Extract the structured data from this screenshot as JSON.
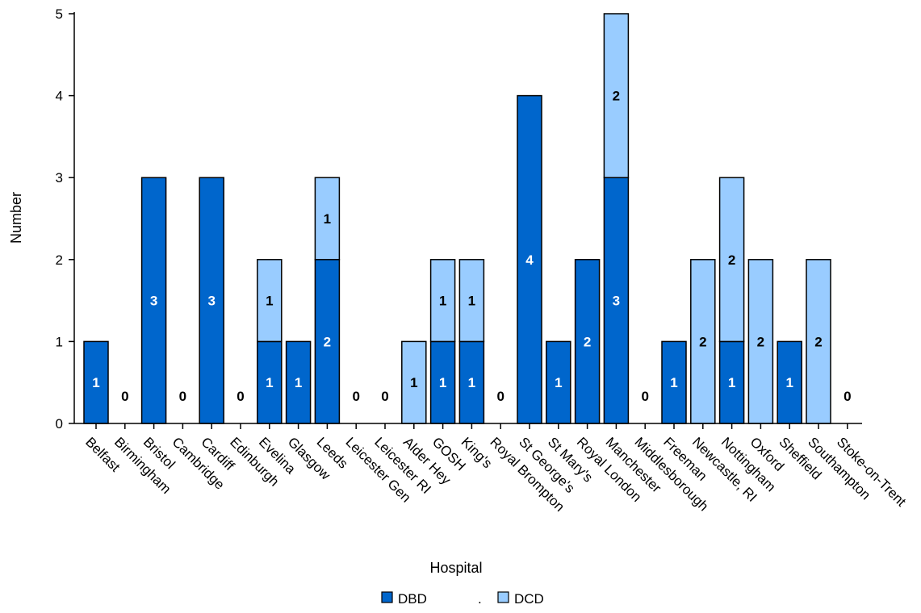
{
  "chart_data": {
    "type": "bar",
    "stacked": true,
    "xlabel": "Hospital",
    "ylabel": "Number",
    "ylim": [
      0,
      5
    ],
    "yticks": [
      0,
      1,
      2,
      3,
      4,
      5
    ],
    "categories": [
      "Belfast",
      "Birmingham",
      "Bristol",
      "Cambridge",
      "Cardiff",
      "Edinburgh",
      "Evelina",
      "Glasgow",
      "Leeds",
      "Leicester Gen",
      "Leicester RI",
      "Alder Hey",
      "GOSH",
      "King's",
      "Royal Brompton",
      "St George's",
      "St Mary's",
      "Royal London",
      "Manchester",
      "Middlesborough",
      "Freeman",
      "Newcastle, RI",
      "Nottingham",
      "Oxford",
      "Sheffield",
      "Southampton",
      "Stoke-on-Trent"
    ],
    "series": [
      {
        "name": "DBD",
        "color": "#0066cc",
        "values": [
          1,
          0,
          3,
          0,
          3,
          0,
          1,
          1,
          2,
          0,
          0,
          0,
          1,
          1,
          0,
          4,
          1,
          2,
          3,
          0,
          1,
          0,
          1,
          0,
          1,
          0,
          0
        ]
      },
      {
        "name": "DCD",
        "color": "#99ccff",
        "values": [
          0,
          0,
          0,
          0,
          0,
          0,
          1,
          0,
          1,
          0,
          0,
          1,
          1,
          1,
          0,
          0,
          0,
          0,
          2,
          0,
          0,
          2,
          2,
          2,
          0,
          2,
          0
        ]
      }
    ],
    "legend": {
      "position": "bottom",
      "separator": "."
    },
    "grid": false
  }
}
